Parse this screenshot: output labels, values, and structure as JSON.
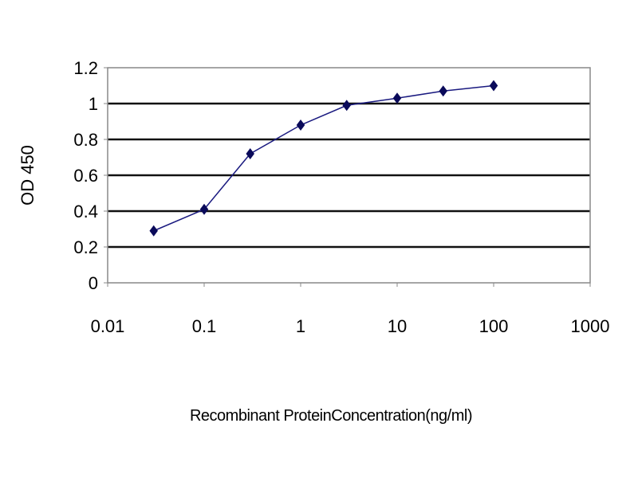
{
  "chart_data": {
    "type": "line",
    "title": "",
    "xlabel": "Recombinant ProteinConcentration(ng/ml)",
    "ylabel": "OD 450",
    "x_scale": "log",
    "xlim": [
      0.01,
      1000
    ],
    "ylim": [
      0,
      1.2
    ],
    "x_ticks": [
      "0.01",
      "0.1",
      "1",
      "10",
      "100",
      "1000"
    ],
    "y_ticks": [
      "0",
      "0.2",
      "0.4",
      "0.6",
      "0.8",
      "1",
      "1.2"
    ],
    "grid": "horizontal",
    "legend": "none",
    "series": [
      {
        "x": [
          0.03,
          0.1,
          0.3,
          1,
          3,
          10,
          30,
          100
        ],
        "y": [
          0.29,
          0.41,
          0.72,
          0.88,
          0.99,
          1.03,
          1.07,
          1.1
        ],
        "color": "#1a1a80",
        "marker": "diamond",
        "marker_color": "#0a0a5a"
      }
    ]
  }
}
